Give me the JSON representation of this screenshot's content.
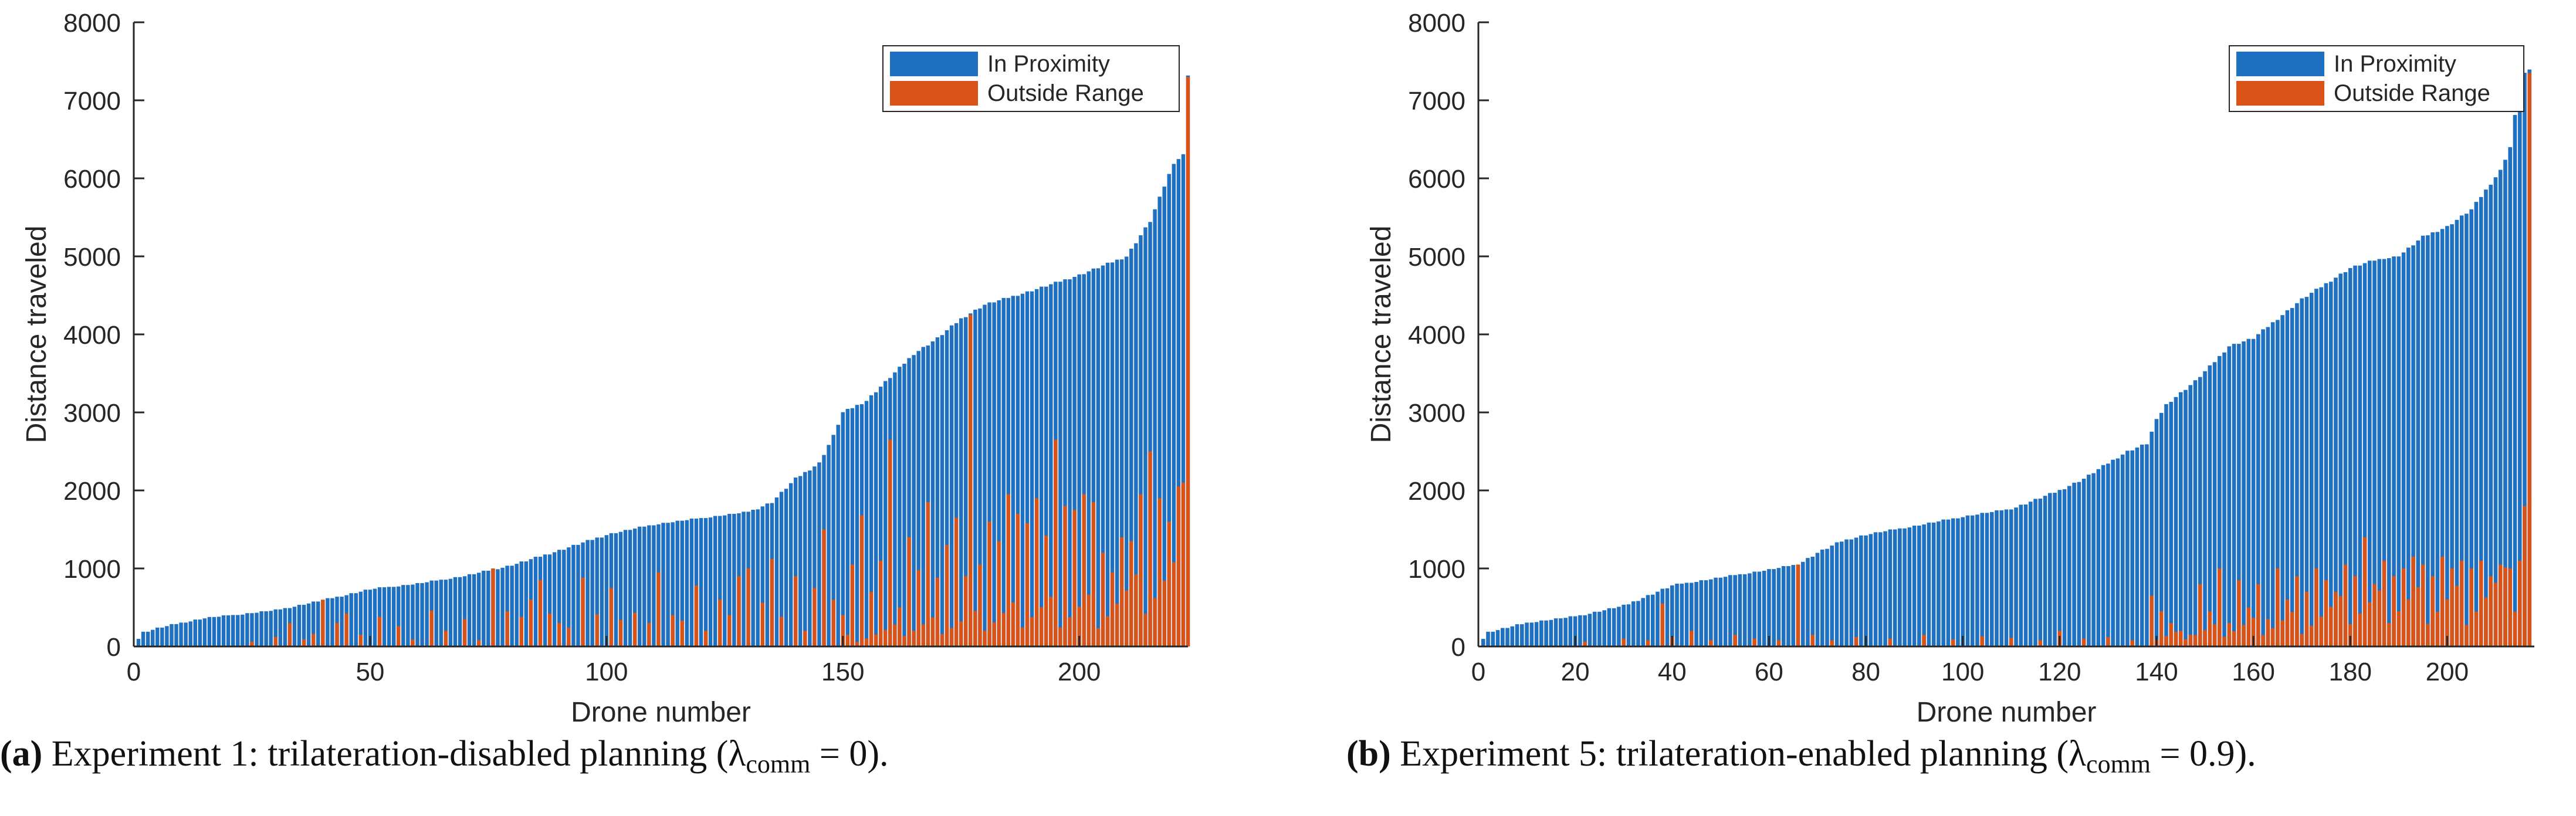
{
  "chart_data": [
    {
      "type": "bar",
      "stacked": false,
      "n_drones": 223,
      "xlabel": "Drone number",
      "ylabel": "Distance traveled",
      "xlim": [
        0,
        223
      ],
      "ylim": [
        0,
        8000
      ],
      "xticks": [
        0,
        50,
        100,
        150,
        200
      ],
      "yticks": [
        0,
        1000,
        2000,
        3000,
        4000,
        5000,
        6000,
        7000,
        8000
      ],
      "grid": false,
      "legend_position": "top-right",
      "series": [
        {
          "name": "In Proximity",
          "color": "#1f70c1",
          "profile": [
            [
              1,
              100
            ],
            [
              2,
              180
            ],
            [
              5,
              230
            ],
            [
              10,
              300
            ],
            [
              15,
              360
            ],
            [
              20,
              390
            ],
            [
              30,
              460
            ],
            [
              40,
              590
            ],
            [
              50,
              730
            ],
            [
              60,
              800
            ],
            [
              70,
              900
            ],
            [
              80,
              1040
            ],
            [
              90,
              1230
            ],
            [
              100,
              1430
            ],
            [
              110,
              1560
            ],
            [
              120,
              1640
            ],
            [
              130,
              1720
            ],
            [
              135,
              1850
            ],
            [
              140,
              2150
            ],
            [
              145,
              2350
            ],
            [
              148,
              2700
            ],
            [
              150,
              3000
            ],
            [
              155,
              3150
            ],
            [
              160,
              3450
            ],
            [
              165,
              3750
            ],
            [
              170,
              3950
            ],
            [
              175,
              4200
            ],
            [
              180,
              4380
            ],
            [
              190,
              4560
            ],
            [
              200,
              4760
            ],
            [
              210,
              5000
            ],
            [
              215,
              5450
            ],
            [
              218,
              5900
            ],
            [
              220,
              6200
            ],
            [
              222,
              6300
            ],
            [
              223,
              7330
            ]
          ]
        },
        {
          "name": "Outside Range",
          "color": "#d95319",
          "spikes": [
            [
              25,
              60
            ],
            [
              30,
              120
            ],
            [
              33,
              300
            ],
            [
              36,
              90
            ],
            [
              38,
              160
            ],
            [
              40,
              600
            ],
            [
              43,
              300
            ],
            [
              45,
              420
            ],
            [
              48,
              150
            ],
            [
              52,
              380
            ],
            [
              56,
              260
            ],
            [
              59,
              90
            ],
            [
              63,
              460
            ],
            [
              66,
              200
            ],
            [
              70,
              350
            ],
            [
              73,
              80
            ],
            [
              76,
              1000
            ],
            [
              79,
              450
            ],
            [
              82,
              380
            ],
            [
              84,
              600
            ],
            [
              86,
              850
            ],
            [
              88,
              420
            ],
            [
              90,
              300
            ],
            [
              92,
              240
            ],
            [
              95,
              880
            ],
            [
              98,
              410
            ],
            [
              101,
              750
            ],
            [
              103,
              340
            ],
            [
              106,
              430
            ],
            [
              109,
              300
            ],
            [
              111,
              950
            ],
            [
              114,
              400
            ],
            [
              116,
              330
            ],
            [
              119,
              780
            ],
            [
              121,
              200
            ],
            [
              124,
              600
            ],
            [
              126,
              400
            ],
            [
              128,
              900
            ],
            [
              130,
              1000
            ],
            [
              133,
              560
            ],
            [
              135,
              1120
            ],
            [
              137,
              380
            ],
            [
              140,
              900
            ],
            [
              142,
              200
            ],
            [
              144,
              750
            ],
            [
              146,
              1500
            ],
            [
              148,
              600
            ],
            [
              150,
              400
            ],
            [
              152,
              1050
            ],
            [
              154,
              1680
            ],
            [
              156,
              700
            ],
            [
              158,
              1100
            ],
            [
              160,
              2650
            ],
            [
              162,
              500
            ],
            [
              164,
              1400
            ],
            [
              166,
              980
            ],
            [
              168,
              1850
            ],
            [
              170,
              880
            ],
            [
              172,
              1300
            ],
            [
              174,
              1650
            ],
            [
              176,
              900
            ],
            [
              177,
              4250
            ],
            [
              179,
              1050
            ],
            [
              181,
              1600
            ],
            [
              183,
              1350
            ],
            [
              185,
              1950
            ],
            [
              187,
              1700
            ],
            [
              189,
              1580
            ],
            [
              191,
              1900
            ],
            [
              193,
              1420
            ],
            [
              195,
              2650
            ],
            [
              197,
              1800
            ],
            [
              199,
              1750
            ],
            [
              201,
              1950
            ],
            [
              203,
              1850
            ],
            [
              205,
              1200
            ],
            [
              207,
              950
            ],
            [
              209,
              1400
            ],
            [
              211,
              1350
            ],
            [
              213,
              1950
            ],
            [
              215,
              2500
            ],
            [
              217,
              1900
            ],
            [
              219,
              1600
            ],
            [
              221,
              2050
            ],
            [
              222,
              2100
            ],
            [
              223,
              7300
            ]
          ],
          "baseline": [
            [
              150,
              120
            ],
            [
              160,
              200
            ],
            [
              170,
              300
            ],
            [
              180,
              350
            ],
            [
              190,
              500
            ],
            [
              200,
              550
            ],
            [
              210,
              650
            ],
            [
              223,
              900
            ]
          ]
        }
      ]
    },
    {
      "type": "bar",
      "stacked": false,
      "n_drones": 217,
      "xlabel": "Drone number",
      "ylabel": "Distance traveled",
      "xlim": [
        0,
        218
      ],
      "ylim": [
        0,
        8000
      ],
      "xticks": [
        0,
        20,
        40,
        60,
        80,
        100,
        120,
        140,
        160,
        180,
        200
      ],
      "yticks": [
        0,
        1000,
        2000,
        3000,
        4000,
        5000,
        6000,
        7000,
        8000
      ],
      "grid": false,
      "legend_position": "top-right",
      "series": [
        {
          "name": "In Proximity",
          "color": "#1f70c1",
          "profile": [
            [
              1,
              100
            ],
            [
              2,
              180
            ],
            [
              10,
              300
            ],
            [
              20,
              380
            ],
            [
              30,
              520
            ],
            [
              40,
              780
            ],
            [
              50,
              880
            ],
            [
              60,
              980
            ],
            [
              66,
              1050
            ],
            [
              70,
              1200
            ],
            [
              75,
              1350
            ],
            [
              80,
              1430
            ],
            [
              90,
              1540
            ],
            [
              100,
              1660
            ],
            [
              110,
              1760
            ],
            [
              115,
              1880
            ],
            [
              120,
              2000
            ],
            [
              125,
              2150
            ],
            [
              130,
              2350
            ],
            [
              134,
              2500
            ],
            [
              138,
              2600
            ],
            [
              140,
              2900
            ],
            [
              142,
              3100
            ],
            [
              148,
              3400
            ],
            [
              152,
              3650
            ],
            [
              155,
              3850
            ],
            [
              160,
              3950
            ],
            [
              165,
              4200
            ],
            [
              170,
              4450
            ],
            [
              175,
              4650
            ],
            [
              180,
              4850
            ],
            [
              185,
              4950
            ],
            [
              190,
              5000
            ],
            [
              195,
              5250
            ],
            [
              200,
              5380
            ],
            [
              205,
              5600
            ],
            [
              208,
              5850
            ],
            [
              211,
              6100
            ],
            [
              213,
              6400
            ],
            [
              215,
              7200
            ],
            [
              216,
              7350
            ],
            [
              217,
              7380
            ]
          ]
        },
        {
          "name": "Outside Range",
          "color": "#d95319",
          "spikes": [
            [
              22,
              60
            ],
            [
              30,
              100
            ],
            [
              35,
              80
            ],
            [
              38,
              550
            ],
            [
              40,
              120
            ],
            [
              44,
              200
            ],
            [
              48,
              80
            ],
            [
              53,
              150
            ],
            [
              57,
              100
            ],
            [
              62,
              80
            ],
            [
              66,
              1050
            ],
            [
              69,
              150
            ],
            [
              73,
              80
            ],
            [
              78,
              120
            ],
            [
              85,
              100
            ],
            [
              92,
              150
            ],
            [
              98,
              90
            ],
            [
              104,
              130
            ],
            [
              110,
              110
            ],
            [
              116,
              80
            ],
            [
              120,
              200
            ],
            [
              125,
              100
            ],
            [
              130,
              120
            ],
            [
              135,
              80
            ],
            [
              139,
              650
            ],
            [
              141,
              450
            ],
            [
              143,
              300
            ],
            [
              145,
              200
            ],
            [
              147,
              150
            ],
            [
              149,
              800
            ],
            [
              151,
              450
            ],
            [
              153,
              1000
            ],
            [
              155,
              300
            ],
            [
              157,
              850
            ],
            [
              159,
              500
            ],
            [
              161,
              800
            ],
            [
              163,
              350
            ],
            [
              165,
              1000
            ],
            [
              167,
              600
            ],
            [
              169,
              900
            ],
            [
              171,
              700
            ],
            [
              173,
              1000
            ],
            [
              175,
              850
            ],
            [
              177,
              700
            ],
            [
              179,
              1050
            ],
            [
              181,
              900
            ],
            [
              183,
              1400
            ],
            [
              185,
              800
            ],
            [
              187,
              1100
            ],
            [
              189,
              900
            ],
            [
              191,
              1000
            ],
            [
              193,
              1150
            ],
            [
              195,
              1050
            ],
            [
              197,
              900
            ],
            [
              199,
              1150
            ],
            [
              201,
              1000
            ],
            [
              203,
              1100
            ],
            [
              205,
              1000
            ],
            [
              207,
              1100
            ],
            [
              209,
              900
            ],
            [
              211,
              1050
            ],
            [
              213,
              1000
            ],
            [
              215,
              1100
            ],
            [
              216,
              1800
            ],
            [
              217,
              7350
            ]
          ],
          "baseline": [
            [
              140,
              100
            ],
            [
              150,
              200
            ],
            [
              160,
              300
            ],
            [
              170,
              400
            ],
            [
              180,
              500
            ],
            [
              190,
              600
            ],
            [
              200,
              650
            ],
            [
              217,
              800
            ]
          ]
        }
      ]
    }
  ],
  "captions": [
    {
      "label": "(a)",
      "text": "Experiment 1: trilateration-disabled planning (λ",
      "sub": "comm",
      "end": " = 0)."
    },
    {
      "label": "(b)",
      "text": "Experiment 5: trilateration-enabled planning (λ",
      "sub": "comm",
      "end": " = 0.9)."
    }
  ]
}
